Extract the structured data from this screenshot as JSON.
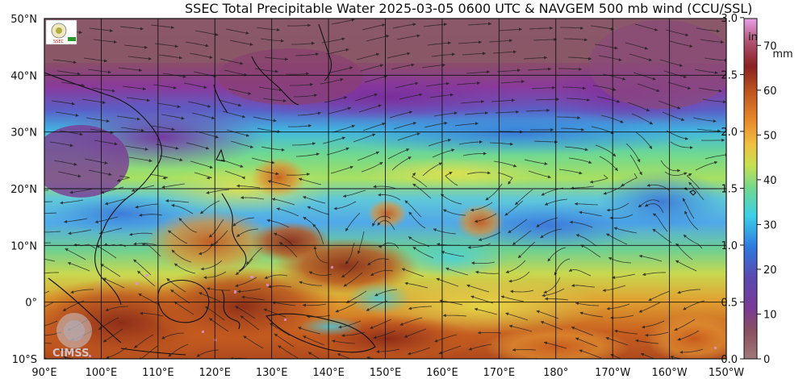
{
  "title": "SSEC Total Precipitable Water  2025-03-05 0600 UTC & NAVGEM 500 mb wind (CCU/SSL)",
  "map": {
    "lat_labels": [
      "50°N",
      "40°N",
      "30°N",
      "20°N",
      "10°N",
      "0°",
      "10°S"
    ],
    "lon_labels": [
      "90°E",
      "100°E",
      "110°E",
      "120°E",
      "130°E",
      "140°E",
      "150°E",
      "160°E",
      "170°E",
      "180°",
      "170°W",
      "160°W",
      "150°W"
    ],
    "lat_range": [
      -10,
      50
    ],
    "lon_range": [
      90,
      210
    ],
    "grid": true
  },
  "colorbar": {
    "inch_unit": "in",
    "mm_unit": "mm",
    "inch_ticks": [
      "3.0",
      "2.5",
      "2.0",
      "1.5",
      "1.0",
      "0.5",
      "0.0"
    ],
    "inch_values": [
      3.0,
      2.5,
      2.0,
      1.5,
      1.0,
      0.5,
      0.0
    ],
    "mm_ticks": [
      "70",
      "60",
      "50",
      "40",
      "30",
      "20",
      "10",
      "0"
    ],
    "mm_values": [
      70,
      60,
      50,
      40,
      30,
      20,
      10,
      0
    ],
    "range_mm": [
      0,
      76
    ]
  },
  "colors": {
    "very_low": "#a07070",
    "low": "#8e3a9a",
    "purple": "#7a4aa6",
    "blue": "#3a6fd8",
    "cyan": "#3ec8e0",
    "green": "#7ad87a",
    "yellow": "#e8e040",
    "orange": "#e0902a",
    "brown": "#b0501e",
    "dark_red": "#7a1a1a",
    "magenta": "#e090e0"
  },
  "logos": {
    "cimss": "CIMSS"
  }
}
